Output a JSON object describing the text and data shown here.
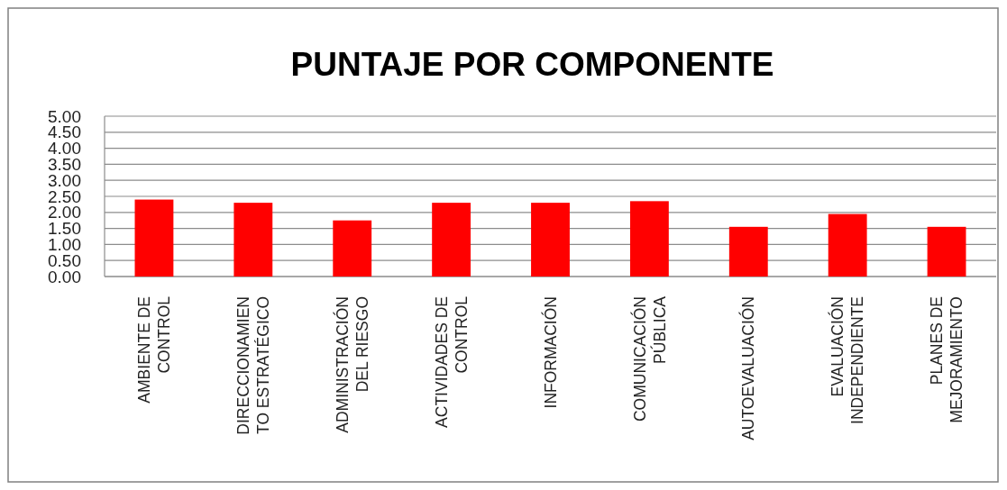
{
  "chart_data": {
    "type": "bar",
    "title": "PUNTAJE POR COMPONENTE",
    "categories": [
      "AMBIENTE DE\nCONTROL",
      "DIRECCIONAMIEN\nTO ESTRATÉGICO",
      "ADMINISTRACIÓN\nDEL RIESGO",
      "ACTIVIDADES DE\nCONTROL",
      "INFORMACIÓN",
      "COMUNICACIÓN\nPÚBLICA",
      "AUTOEVALUACIÓN",
      "EVALUACIÓN\nINDEPENDIENTE",
      "PLANES DE\nMEJORAMIENTO"
    ],
    "values": [
      2.4,
      2.3,
      1.75,
      2.3,
      2.3,
      2.35,
      1.55,
      1.95,
      1.55
    ],
    "color": "#ff0000",
    "ylim": [
      0,
      5
    ],
    "yticks": [
      {
        "value": 0,
        "label": "0.00"
      },
      {
        "value": 0.5,
        "label": "0.50"
      },
      {
        "value": 1,
        "label": "1.00"
      },
      {
        "value": 1.5,
        "label": "1.50"
      },
      {
        "value": 2,
        "label": "2.00"
      },
      {
        "value": 2.5,
        "label": "2.50"
      },
      {
        "value": 3,
        "label": "3.00"
      },
      {
        "value": 3.5,
        "label": "3.50"
      },
      {
        "value": 4,
        "label": "4.00"
      },
      {
        "value": 4.5,
        "label": "4.50"
      },
      {
        "value": 5,
        "label": "5.00"
      }
    ],
    "grid": true
  }
}
